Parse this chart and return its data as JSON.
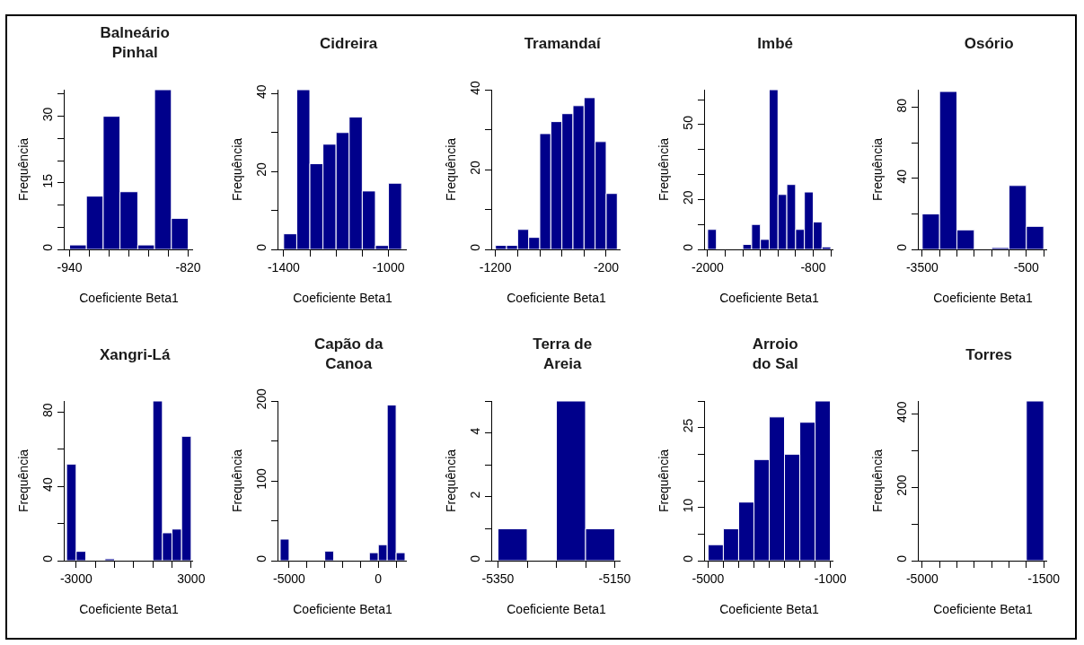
{
  "chart_data": [
    {
      "type": "histogram",
      "title": "Balneário\nPinhal",
      "xlabel": "Coeficiente Beta1",
      "ylabel": "Frequência",
      "color": "#00008b",
      "bins": [
        -940,
        -923,
        -906,
        -889,
        -871,
        -854,
        -837,
        -820
      ],
      "values": [
        1,
        12,
        30,
        13,
        1,
        36,
        7
      ],
      "xlim": [
        -945,
        -815
      ],
      "ylim": [
        0,
        36
      ],
      "xticks": [
        -940,
        {
          "value": -920,
          "label": null
        },
        {
          "value": -900,
          "label": null
        },
        {
          "value": -880,
          "label": null
        },
        {
          "value": -860,
          "label": null
        },
        {
          "value": -840,
          "label": null
        },
        -820
      ],
      "yticks": [
        0,
        {
          "value": 5,
          "label": null
        },
        {
          "value": 10,
          "label": null
        },
        15,
        {
          "value": 20,
          "label": null
        },
        {
          "value": 25,
          "label": null
        },
        30,
        {
          "value": 35,
          "label": null
        }
      ]
    },
    {
      "type": "histogram",
      "title": "Cidreira",
      "xlabel": "Coeficiente Beta1",
      "ylabel": "Frequência",
      "color": "#00008b",
      "bins": [
        -1400,
        -1350,
        -1300,
        -1250,
        -1200,
        -1150,
        -1100,
        -1050,
        -1000,
        -950
      ],
      "values": [
        4,
        41,
        22,
        27,
        30,
        34,
        15,
        1,
        17
      ],
      "xlim": [
        -1420,
        -930
      ],
      "ylim": [
        0,
        41
      ],
      "xticks": [
        -1400,
        {
          "value": -1300,
          "label": null
        },
        {
          "value": -1200,
          "label": null
        },
        {
          "value": -1100,
          "label": null
        },
        -1000
      ],
      "yticks": [
        0,
        {
          "value": 10,
          "label": null
        },
        20,
        {
          "value": 30,
          "label": null
        },
        40
      ]
    },
    {
      "type": "histogram",
      "title": "Tramandaí",
      "xlabel": "Coeficiente Beta1",
      "ylabel": "Frequência",
      "color": "#00008b",
      "bins": [
        -1200,
        -1100,
        -1000,
        -900,
        -800,
        -700,
        -600,
        -500,
        -400,
        -300,
        -200,
        -100
      ],
      "values": [
        1,
        1,
        5,
        3,
        29,
        32,
        34,
        36,
        38,
        27,
        14
      ],
      "xlim": [
        -1230,
        -70
      ],
      "ylim": [
        0,
        40
      ],
      "xticks": [
        -1200,
        {
          "value": -1000,
          "label": null
        },
        {
          "value": -800,
          "label": null
        },
        {
          "value": -600,
          "label": null
        },
        {
          "value": -400,
          "label": null
        },
        -200
      ],
      "yticks": [
        0,
        {
          "value": 10,
          "label": null
        },
        20,
        {
          "value": 30,
          "label": null
        },
        40
      ]
    },
    {
      "type": "histogram",
      "title": "Imbé",
      "xlabel": "Coeficiente Beta1",
      "ylabel": "Frequência",
      "color": "#00008b",
      "bins": [
        -2000,
        -1900,
        -1800,
        -1700,
        -1600,
        -1500,
        -1400,
        -1300,
        -1200,
        -1100,
        -1000,
        -900,
        -800,
        -700,
        -600
      ],
      "values": [
        8,
        0,
        0,
        0,
        2,
        10,
        4,
        64,
        22,
        26,
        8,
        23,
        11,
        1
      ],
      "xlim": [
        -2030,
        -570
      ],
      "ylim": [
        0,
        64
      ],
      "xticks": [
        -2000,
        {
          "value": -1800,
          "label": null
        },
        {
          "value": -1600,
          "label": null
        },
        {
          "value": -1400,
          "label": null
        },
        {
          "value": -1200,
          "label": null
        },
        {
          "value": -1000,
          "label": null
        },
        -800,
        {
          "value": -600,
          "label": null
        }
      ],
      "yticks": [
        0,
        {
          "value": 10,
          "label": null
        },
        20,
        {
          "value": 30,
          "label": null
        },
        {
          "value": 40,
          "label": null
        },
        50,
        {
          "value": 60,
          "label": null
        }
      ]
    },
    {
      "type": "histogram",
      "title": "Osório",
      "xlabel": "Coeficiente Beta1",
      "ylabel": "Frequência",
      "color": "#00008b",
      "bins": [
        -3500,
        -3000,
        -2500,
        -2000,
        -1500,
        -1000,
        -500,
        0
      ],
      "values": [
        20,
        89,
        11,
        0,
        1,
        36,
        13
      ],
      "xlim": [
        -3600,
        100
      ],
      "ylim": [
        0,
        90
      ],
      "xticks": [
        -3500,
        {
          "value": -3000,
          "label": null
        },
        {
          "value": -2500,
          "label": null
        },
        {
          "value": -2000,
          "label": null
        },
        {
          "value": -1500,
          "label": null
        },
        {
          "value": -1000,
          "label": null
        },
        -500,
        {
          "value": 0,
          "label": null
        }
      ],
      "yticks": [
        0,
        {
          "value": 20,
          "label": null
        },
        40,
        {
          "value": 60,
          "label": null
        },
        80
      ]
    },
    {
      "type": "histogram",
      "title": "Xangri-Lá",
      "xlabel": "Coeficiente Beta1",
      "ylabel": "Frequência",
      "color": "#00008b",
      "bins": [
        -3500,
        -3000,
        -2500,
        -2000,
        -1500,
        -1000,
        -500,
        0,
        500,
        1000,
        1500,
        2000,
        2500,
        3000
      ],
      "values": [
        52,
        5,
        0,
        0,
        1,
        0,
        0,
        0,
        0,
        86,
        15,
        17,
        67
      ],
      "xlim": [
        -3600,
        3100
      ],
      "ylim": [
        0,
        86
      ],
      "xticks": [
        -3000,
        {
          "value": -2000,
          "label": null
        },
        {
          "value": -1000,
          "label": null
        },
        {
          "value": 0,
          "label": null
        },
        {
          "value": 1000,
          "label": null
        },
        {
          "value": 2000,
          "label": null
        },
        3000
      ],
      "yticks": [
        0,
        {
          "value": 20,
          "label": null
        },
        40,
        {
          "value": 60,
          "label": null
        },
        80
      ]
    },
    {
      "type": "histogram",
      "title": "Capão da\nCanoa",
      "xlabel": "Coeficiente Beta1",
      "ylabel": "Frequência",
      "color": "#00008b",
      "bins": [
        -5500,
        -5000,
        -4500,
        -4000,
        -3500,
        -3000,
        -2500,
        -2000,
        -1500,
        -1000,
        -500,
        0,
        500,
        1000,
        1500
      ],
      "values": [
        27,
        0,
        0,
        0,
        0,
        12,
        0,
        0,
        0,
        0,
        10,
        20,
        195,
        10
      ],
      "xlim": [
        -5600,
        1600
      ],
      "ylim": [
        0,
        200
      ],
      "xticks": [
        -5000,
        {
          "value": -4000,
          "label": null
        },
        {
          "value": -3000,
          "label": null
        },
        {
          "value": -2000,
          "label": null
        },
        {
          "value": -1000,
          "label": null
        },
        0,
        {
          "value": 1000,
          "label": null
        }
      ],
      "yticks": [
        0,
        {
          "value": 50,
          "label": null
        },
        100,
        {
          "value": 150,
          "label": null
        },
        200
      ]
    },
    {
      "type": "histogram",
      "title": "Terra de\nAreia",
      "xlabel": "Coeficiente Beta1",
      "ylabel": "Frequência",
      "color": "#00008b",
      "bins": [
        -5350,
        -5300,
        -5250,
        -5200,
        -5150
      ],
      "values": [
        1,
        0,
        5,
        1
      ],
      "xlim": [
        -5360,
        -5140
      ],
      "ylim": [
        0,
        5
      ],
      "xticks": [
        -5350,
        {
          "value": -5300,
          "label": null
        },
        {
          "value": -5250,
          "label": null
        },
        {
          "value": -5200,
          "label": null
        },
        -5150
      ],
      "yticks": [
        0,
        {
          "value": 1,
          "label": null
        },
        2,
        {
          "value": 3,
          "label": null
        },
        4,
        {
          "value": 5,
          "label": null
        }
      ]
    },
    {
      "type": "histogram",
      "title": "Arroio\ndo Sal",
      "xlabel": "Coeficiente Beta1",
      "ylabel": "Frequência",
      "color": "#00008b",
      "bins": [
        -5000,
        -4500,
        -4000,
        -3500,
        -3000,
        -2500,
        -2000,
        -1500,
        -1000
      ],
      "values": [
        3,
        6,
        11,
        19,
        27,
        20,
        26,
        30
      ],
      "xlim": [
        -5100,
        -900
      ],
      "ylim": [
        0,
        30
      ],
      "xticks": [
        -5000,
        {
          "value": -4500,
          "label": null
        },
        {
          "value": -4000,
          "label": null
        },
        {
          "value": -3500,
          "label": null
        },
        {
          "value": -3000,
          "label": null
        },
        {
          "value": -2500,
          "label": null
        },
        {
          "value": -2000,
          "label": null
        },
        {
          "value": -1500,
          "label": null
        },
        -1000
      ],
      "yticks": [
        0,
        {
          "value": 5,
          "label": null
        },
        10,
        {
          "value": 15,
          "label": null
        },
        {
          "value": 20,
          "label": null
        },
        25,
        {
          "value": 30,
          "label": null
        }
      ]
    },
    {
      "type": "histogram",
      "title": "Torres",
      "xlabel": "Coeficiente Beta1",
      "ylabel": "Frequência",
      "color": "#00008b",
      "bins": [
        -5000,
        -4500,
        -4000,
        -3500,
        -3000,
        -2500,
        -2000,
        -1500
      ],
      "values": [
        0,
        0,
        0,
        0,
        0,
        0,
        435
      ],
      "xlim": [
        -5100,
        -1400
      ],
      "ylim": [
        0,
        435
      ],
      "xticks": [
        -5000,
        {
          "value": -4500,
          "label": null
        },
        {
          "value": -4000,
          "label": null
        },
        {
          "value": -3500,
          "label": null
        },
        {
          "value": -3000,
          "label": null
        },
        {
          "value": -2500,
          "label": null
        },
        {
          "value": -2000,
          "label": null
        },
        -1500
      ],
      "yticks": [
        0,
        {
          "value": 100,
          "label": null
        },
        200,
        {
          "value": 300,
          "label": null
        },
        400
      ]
    }
  ]
}
